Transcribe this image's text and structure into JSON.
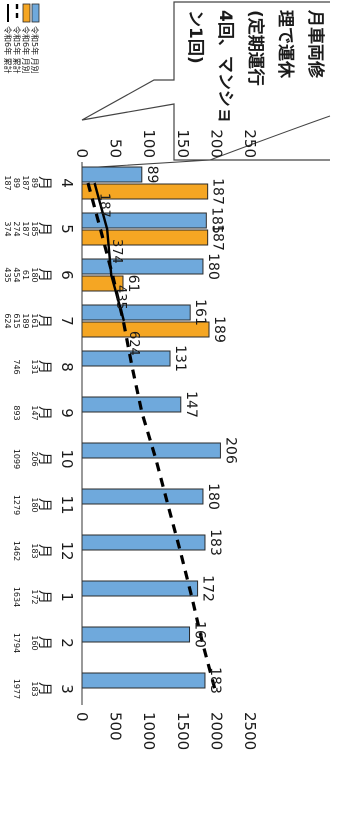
{
  "chart_data": {
    "type": "bar",
    "orientation": "rotated-90-clockwise",
    "categories": [
      "4\n月",
      "5\n月",
      "6\n月",
      "7\n月",
      "8\n月",
      "9\n月",
      "10\n月",
      "11\n月",
      "12\n月",
      "1\n月",
      "2\n月",
      "3\n月"
    ],
    "month_numbers": [
      "4",
      "5",
      "6",
      "7",
      "8",
      "9",
      "10",
      "11",
      "12",
      "1",
      "2",
      "3"
    ],
    "month_unit": "月",
    "y_left": {
      "ticks": [
        "0",
        "50",
        "100",
        "150",
        "200",
        "250"
      ],
      "ylim": [
        0,
        250
      ]
    },
    "y_right": {
      "ticks": [
        "0",
        "500",
        "1000",
        "1500",
        "2000",
        "2500"
      ],
      "ylim": [
        0,
        2500
      ]
    },
    "series": [
      {
        "name": "令和5年 月別",
        "kind": "bar",
        "axis": "left",
        "color": "#6fa9dc",
        "values": [
          89,
          185,
          180,
          161,
          131,
          147,
          206,
          180,
          183,
          172,
          160,
          183
        ]
      },
      {
        "name": "令和6年 月別",
        "kind": "bar",
        "axis": "left",
        "color": "#f5a623",
        "values": [
          187,
          187,
          61,
          189,
          null,
          null,
          null,
          null,
          null,
          null,
          null,
          null
        ]
      },
      {
        "name": "令和5年 累計",
        "kind": "line",
        "style": "dashed",
        "axis": "right",
        "color": "#000000",
        "values": [
          89,
          274,
          454,
          615,
          746,
          893,
          1099,
          1279,
          1462,
          1634,
          1794,
          1977
        ]
      },
      {
        "name": "令和6年 累計",
        "kind": "line",
        "style": "solid",
        "axis": "right",
        "color": "#000000",
        "values": [
          187,
          374,
          435,
          624,
          null,
          null,
          null,
          null,
          null,
          null,
          null,
          null
        ]
      }
    ],
    "bar_labels": {
      "r5": [
        "89",
        "185",
        "180",
        "161",
        "131",
        "147",
        "206",
        "180",
        "183",
        "172",
        "160",
        "183"
      ],
      "r6": [
        "187",
        "187",
        "61",
        "189"
      ]
    },
    "line_labels": [
      "187",
      "374",
      "435",
      "624"
    ],
    "table": {
      "rows": [
        {
          "label": "令和5年 月別",
          "values": [
            "89",
            "185",
            "180",
            "161",
            "131",
            "147",
            "206",
            "180",
            "183",
            "172",
            "160",
            "183"
          ]
        },
        {
          "label": "令和6年 月別",
          "values": [
            "187",
            "187",
            "61",
            "189",
            "",
            "",
            "",
            "",
            "",
            "",
            "",
            ""
          ]
        },
        {
          "label": "令和5年 累計",
          "values": [
            "89",
            "274",
            "454",
            "615",
            "746",
            "893",
            "1099",
            "1279",
            "1462",
            "1634",
            "1794",
            "1977"
          ]
        },
        {
          "label": "令和6年 累計",
          "values": [
            "187",
            "374",
            "435",
            "624",
            "",
            "",
            "",
            "",
            "",
            "",
            "",
            ""
          ]
        }
      ]
    },
    "callout": [
      "月車両修",
      "理で運休",
      "(定期運行",
      "4回、マンショ",
      "ン1回)"
    ],
    "grid": false
  }
}
